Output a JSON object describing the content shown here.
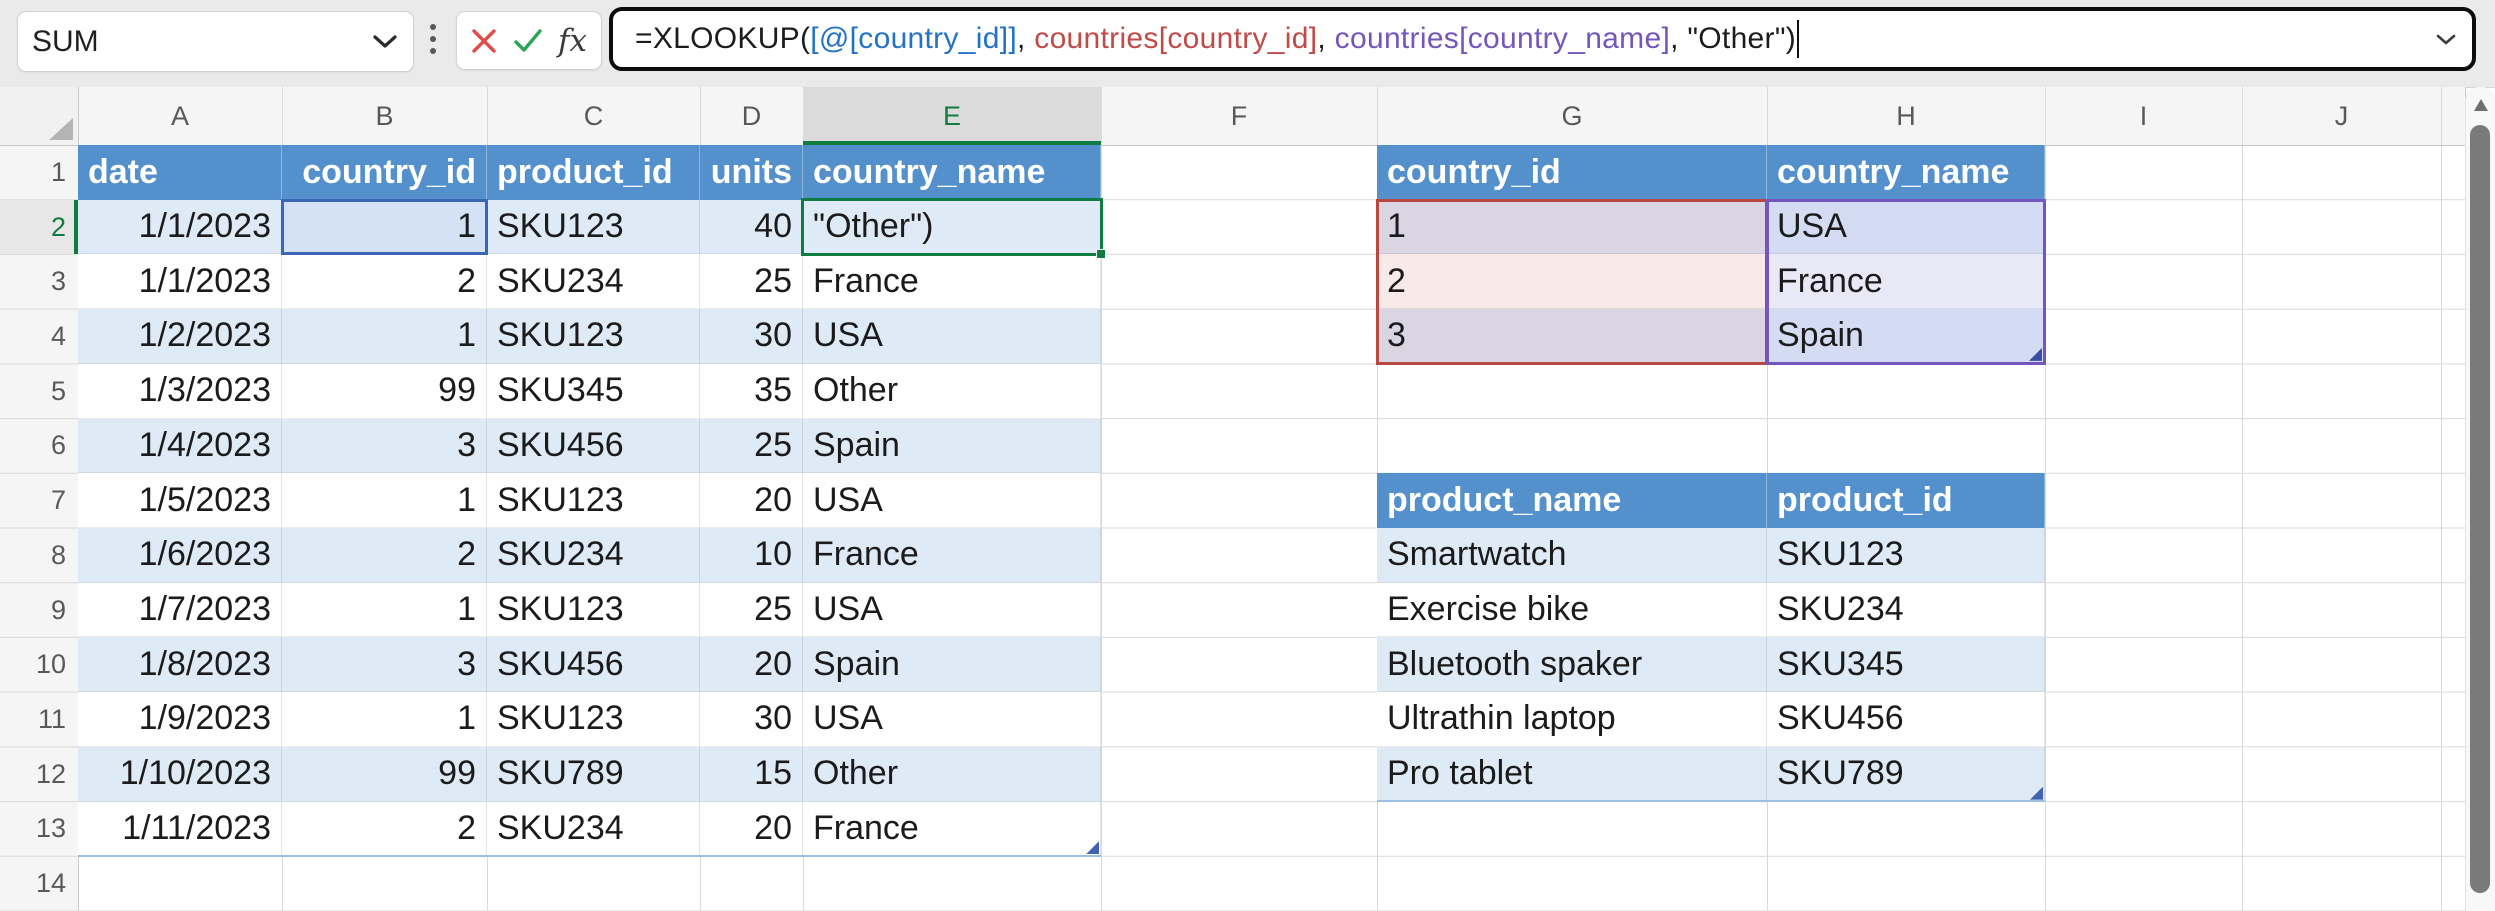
{
  "toolbar": {
    "name_box_value": "SUM",
    "fx_label": "fx",
    "formula_segments": [
      {
        "text": "=XLOOKUP(",
        "color": "#1c1c1c"
      },
      {
        "text": "[@[country_id]]",
        "color": "#2472c8"
      },
      {
        "text": ", ",
        "color": "#1c1c1c"
      },
      {
        "text": "countries[country_id]",
        "color": "#bf4a47"
      },
      {
        "text": ", ",
        "color": "#1c1c1c"
      },
      {
        "text": "countries[country_name]",
        "color": "#7456bc"
      },
      {
        "text": ", \"Other\")",
        "color": "#1c1c1c"
      }
    ]
  },
  "sheet": {
    "column_headers": [
      "A",
      "B",
      "C",
      "D",
      "E",
      "F",
      "G",
      "H",
      "I",
      "J"
    ],
    "row_count": 14,
    "selected_column": "E",
    "selected_row": 2,
    "active_cell": "E2"
  },
  "tables": [
    {
      "name": "sales",
      "start_col": "A",
      "header_row": 1,
      "columns": [
        {
          "label": "date",
          "header_align": "left",
          "data_align": "right"
        },
        {
          "label": "country_id",
          "header_align": "right",
          "data_align": "right"
        },
        {
          "label": "product_id",
          "header_align": "left",
          "data_align": "left"
        },
        {
          "label": "units",
          "header_align": "right",
          "data_align": "right"
        },
        {
          "label": "country_name",
          "header_align": "left",
          "data_align": "left"
        }
      ],
      "rows": [
        [
          "1/1/2023",
          "1",
          "SKU123",
          "40",
          "\"Other\")"
        ],
        [
          "1/1/2023",
          "2",
          "SKU234",
          "25",
          "France"
        ],
        [
          "1/2/2023",
          "1",
          "SKU123",
          "30",
          "USA"
        ],
        [
          "1/3/2023",
          "99",
          "SKU345",
          "35",
          "Other"
        ],
        [
          "1/4/2023",
          "3",
          "SKU456",
          "25",
          "Spain"
        ],
        [
          "1/5/2023",
          "1",
          "SKU123",
          "20",
          "USA"
        ],
        [
          "1/6/2023",
          "2",
          "SKU234",
          "10",
          "France"
        ],
        [
          "1/7/2023",
          "1",
          "SKU123",
          "25",
          "USA"
        ],
        [
          "1/8/2023",
          "3",
          "SKU456",
          "20",
          "Spain"
        ],
        [
          "1/9/2023",
          "1",
          "SKU123",
          "30",
          "USA"
        ],
        [
          "1/10/2023",
          "99",
          "SKU789",
          "15",
          "Other"
        ],
        [
          "1/11/2023",
          "2",
          "SKU234",
          "20",
          "France"
        ]
      ],
      "corner_handle": true
    },
    {
      "name": "countries",
      "start_col": "G",
      "header_row": 1,
      "columns": [
        {
          "label": "country_id",
          "header_align": "left",
          "data_align": "left"
        },
        {
          "label": "country_name",
          "header_align": "left",
          "data_align": "left"
        }
      ],
      "rows": [
        [
          "1",
          "USA"
        ],
        [
          "2",
          "France"
        ],
        [
          "3",
          "Spain"
        ]
      ],
      "corner_handle": false
    },
    {
      "name": "products",
      "start_col": "G",
      "header_row": 7,
      "columns": [
        {
          "label": "product_name",
          "header_align": "left",
          "data_align": "left"
        },
        {
          "label": "product_id",
          "header_align": "left",
          "data_align": "left"
        }
      ],
      "rows": [
        [
          "Smartwatch",
          "SKU123"
        ],
        [
          "Exercise bike",
          "SKU234"
        ],
        [
          "Bluetooth spaker",
          "SKU345"
        ],
        [
          "Ultrathin laptop",
          "SKU456"
        ],
        [
          "Pro tablet",
          "SKU789"
        ]
      ],
      "corner_handle": true
    }
  ],
  "references": [
    {
      "range": "B2:B2",
      "border": "#3a66b5",
      "fills": [
        "#d5e2f5"
      ],
      "handle": null
    },
    {
      "range": "G2:G4",
      "border": "#b94843",
      "fills": [
        "#d9d5e3",
        "#fae9e9",
        "#d9d5e3"
      ],
      "handle": null
    },
    {
      "range": "H2:H4",
      "border": "#7456bc",
      "fills": [
        "#d3dcf2",
        "#e9e8f7",
        "#d3dcf2"
      ],
      "handle": "#3b4ea3"
    }
  ],
  "colors": {
    "table_header_fill": "#5490cb",
    "table_header_text": "#ffffff",
    "band_fill": "#deeaf6",
    "plain_fill": "#ffffff",
    "selection_green": "#107c41",
    "gridline": "#d9d9d9",
    "gridline_dark": "#c9c9c9",
    "cell_text": "#1b1b1b",
    "cancel_red": "#e14b4b",
    "enter_green": "#2ea355",
    "table_edge": "#9cc0e4",
    "table_handle": "#4062b0",
    "scroll_thumb": "#7a7a7a"
  }
}
